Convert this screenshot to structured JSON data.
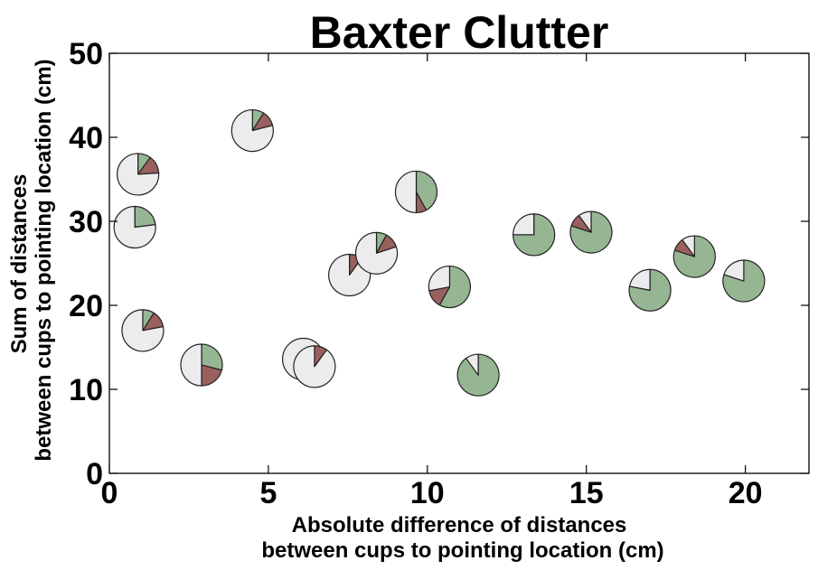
{
  "chart_data": {
    "type": "scatter",
    "marker": "pie",
    "title": "Baxter Clutter",
    "xlabel": [
      "Absolute difference of distances",
      "between cups to pointing location (cm)"
    ],
    "ylabel": [
      "Sum of distances",
      "between cups to pointing location (cm)"
    ],
    "xlim": [
      0,
      22
    ],
    "ylim": [
      0,
      50
    ],
    "xticks": [
      0,
      5,
      10,
      15,
      20
    ],
    "yticks": [
      0,
      10,
      20,
      30,
      40,
      50
    ],
    "grid": false,
    "colors": {
      "green": "#96b592",
      "red": "#9a605e",
      "white": "#ececec",
      "edge": "#222222"
    },
    "points": [
      {
        "x": 0.9,
        "y": 35.6,
        "green": 0.1,
        "red": 0.14
      },
      {
        "x": 0.8,
        "y": 29.3,
        "green": 0.23,
        "red": 0.0
      },
      {
        "x": 1.05,
        "y": 17.0,
        "green": 0.09,
        "red": 0.13
      },
      {
        "x": 2.9,
        "y": 12.9,
        "green": 0.29,
        "red": 0.21
      },
      {
        "x": 4.5,
        "y": 40.8,
        "green": 0.09,
        "red": 0.12
      },
      {
        "x": 6.1,
        "y": 13.6,
        "green": 0.0,
        "red": 0.0
      },
      {
        "x": 6.45,
        "y": 12.7,
        "green": 0.0,
        "red": 0.1
      },
      {
        "x": 7.55,
        "y": 23.6,
        "green": 0.0,
        "red": 0.1
      },
      {
        "x": 8.4,
        "y": 26.2,
        "green": 0.08,
        "red": 0.12
      },
      {
        "x": 9.65,
        "y": 33.5,
        "green": 0.42,
        "red": 0.08
      },
      {
        "x": 10.7,
        "y": 22.2,
        "green": 0.58,
        "red": 0.14
      },
      {
        "x": 11.6,
        "y": 11.7,
        "green": 0.9,
        "red": 0.0
      },
      {
        "x": 13.35,
        "y": 28.4,
        "green": 0.75,
        "red": 0.0
      },
      {
        "x": 15.15,
        "y": 28.7,
        "green": 0.8,
        "red": 0.1
      },
      {
        "x": 17.0,
        "y": 21.8,
        "green": 0.78,
        "red": 0.0
      },
      {
        "x": 18.4,
        "y": 25.8,
        "green": 0.8,
        "red": 0.1
      },
      {
        "x": 19.95,
        "y": 22.9,
        "green": 0.8,
        "red": 0.0
      }
    ]
  }
}
